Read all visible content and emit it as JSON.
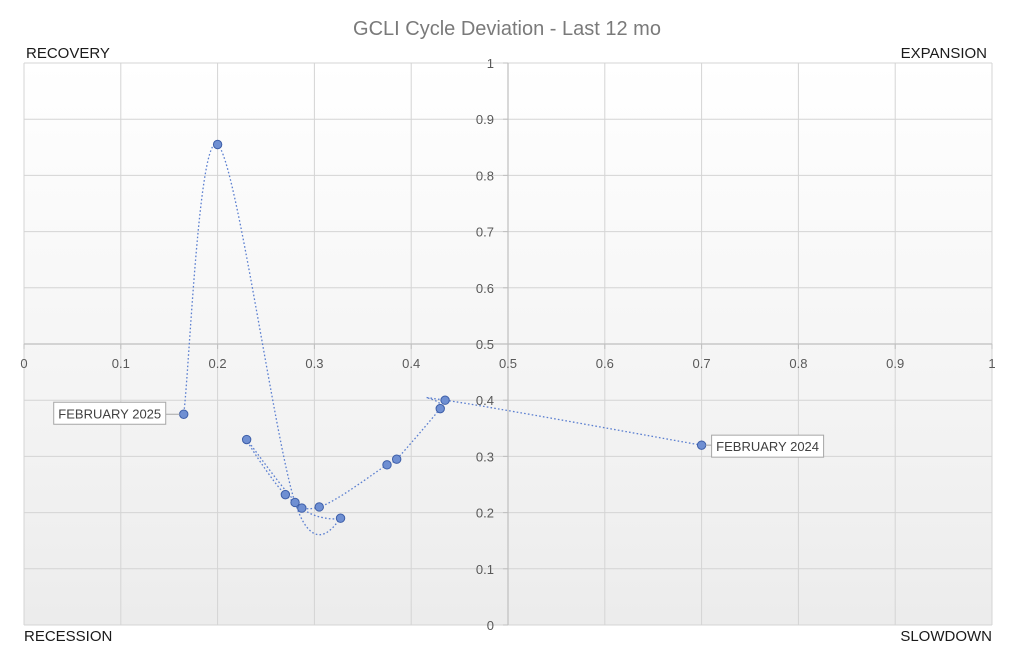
{
  "chart_data": {
    "type": "scatter",
    "title": "GCLI Cycle Deviation - Last 12 mo",
    "xlim": [
      0,
      1
    ],
    "ylim": [
      0,
      1
    ],
    "x_ticks": [
      "0",
      "0.1",
      "0.2",
      "0.3",
      "0.4",
      "0.5",
      "0.6",
      "0.7",
      "0.8",
      "0.9",
      "1"
    ],
    "y_ticks": [
      "0",
      "0.1",
      "0.2",
      "0.3",
      "0.4",
      "0.5",
      "0.6",
      "0.7",
      "0.8",
      "0.9",
      "1"
    ],
    "grid": true,
    "line_style": "dotted smoothed",
    "marker_color": "#6f8fd2",
    "line_color": "#5b7fd0",
    "quadrants": {
      "top_left": "RECOVERY",
      "top_right": "EXPANSION",
      "bottom_left": "RECESSION",
      "bottom_right": "SLOWDOWN"
    },
    "points": [
      {
        "x": 0.7,
        "y": 0.32
      },
      {
        "x": 0.435,
        "y": 0.4
      },
      {
        "x": 0.43,
        "y": 0.385
      },
      {
        "x": 0.385,
        "y": 0.295
      },
      {
        "x": 0.375,
        "y": 0.285
      },
      {
        "x": 0.305,
        "y": 0.21
      },
      {
        "x": 0.27,
        "y": 0.232
      },
      {
        "x": 0.23,
        "y": 0.33
      },
      {
        "x": 0.287,
        "y": 0.208
      },
      {
        "x": 0.327,
        "y": 0.19
      },
      {
        "x": 0.28,
        "y": 0.218
      },
      {
        "x": 0.2,
        "y": 0.855
      },
      {
        "x": 0.165,
        "y": 0.375
      }
    ],
    "annotations": [
      {
        "label": "FEBRUARY 2024",
        "point_index": 0,
        "side": "right"
      },
      {
        "label": "FEBRUARY 2025",
        "point_index": 12,
        "side": "left"
      }
    ]
  }
}
